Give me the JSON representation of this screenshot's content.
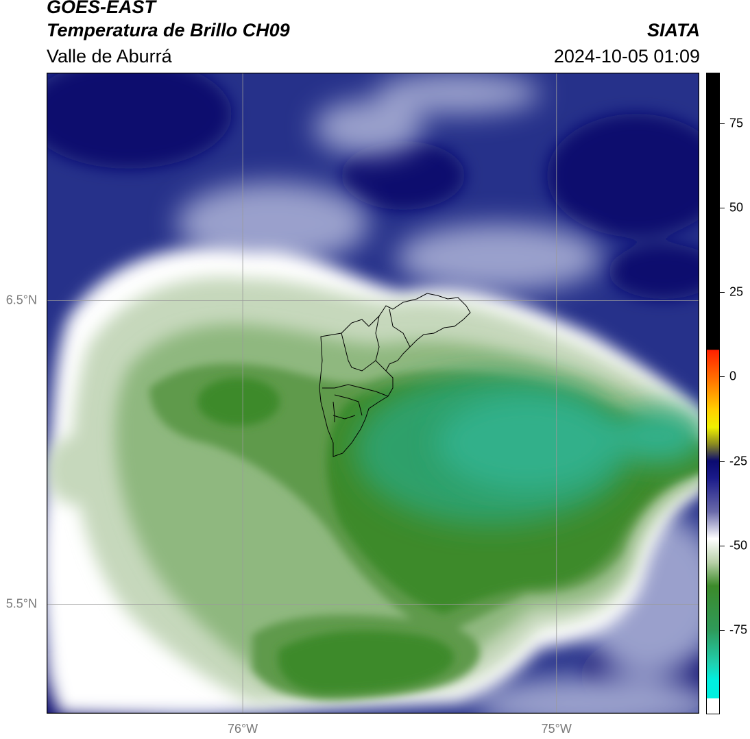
{
  "header": {
    "satellite": "GOES-EAST",
    "product": "Temperatura de Brillo CH09",
    "brand": "SIATA",
    "region": "Valle de Aburrá",
    "timestamp": "2024-10-05 01:09"
  },
  "map": {
    "lon_range": [
      -76.625,
      -74.545
    ],
    "lat_range": [
      5.14,
      7.25
    ],
    "gridlines": true,
    "lon_ticks": [
      {
        "value": -76.0,
        "label": "76°W"
      },
      {
        "value": -75.0,
        "label": "75°W"
      }
    ],
    "lat_ticks": [
      {
        "value": 6.5,
        "label": "6.5°N"
      },
      {
        "value": 5.5,
        "label": "5.5°N"
      }
    ],
    "colors": {
      "deep_navy": "#0b0f6e",
      "navy": "#26318a",
      "blue_mid": "#4a55a3",
      "lavender": "#9aa0cc",
      "white": "#ffffff",
      "pale_green": "#c6d8bc",
      "light_green": "#8fb87f",
      "mid_green": "#5e9a4c",
      "dark_green": "#3c8a2a",
      "teal_green": "#2fa06a",
      "teal_center": "#33b08a"
    }
  },
  "colorbar": {
    "ticks": [
      {
        "value": 75,
        "label": "75"
      },
      {
        "value": 50,
        "label": "50"
      },
      {
        "value": 25,
        "label": "25"
      },
      {
        "value": 0,
        "label": "0"
      },
      {
        "value": -25,
        "label": "-25"
      },
      {
        "value": -50,
        "label": "-50"
      },
      {
        "value": -75,
        "label": "-75"
      }
    ],
    "range": [
      -100,
      90
    ],
    "stops": [
      {
        "value": 90,
        "color": "#000000"
      },
      {
        "value": 8,
        "color": "#000000"
      },
      {
        "value": 7.9,
        "color": "#ff2000"
      },
      {
        "value": 0,
        "color": "#ff6a00"
      },
      {
        "value": -10,
        "color": "#ffd000"
      },
      {
        "value": -15,
        "color": "#f0f000"
      },
      {
        "value": -20,
        "color": "#8a8a20"
      },
      {
        "value": -25,
        "color": "#0a0a70"
      },
      {
        "value": -30,
        "color": "#1a1a8a"
      },
      {
        "value": -40,
        "color": "#6a6aaa"
      },
      {
        "value": -48,
        "color": "#ffffff"
      },
      {
        "value": -55,
        "color": "#b8d0a8"
      },
      {
        "value": -62,
        "color": "#3c8a2a"
      },
      {
        "value": -75,
        "color": "#2f9a5a"
      },
      {
        "value": -85,
        "color": "#20d0b0"
      },
      {
        "value": -90,
        "color": "#00f0e0"
      },
      {
        "value": -95.2,
        "color": "#00f0e0"
      },
      {
        "value": -95.3,
        "color": "#ffffff"
      },
      {
        "value": -100,
        "color": "#ffffff"
      }
    ]
  }
}
